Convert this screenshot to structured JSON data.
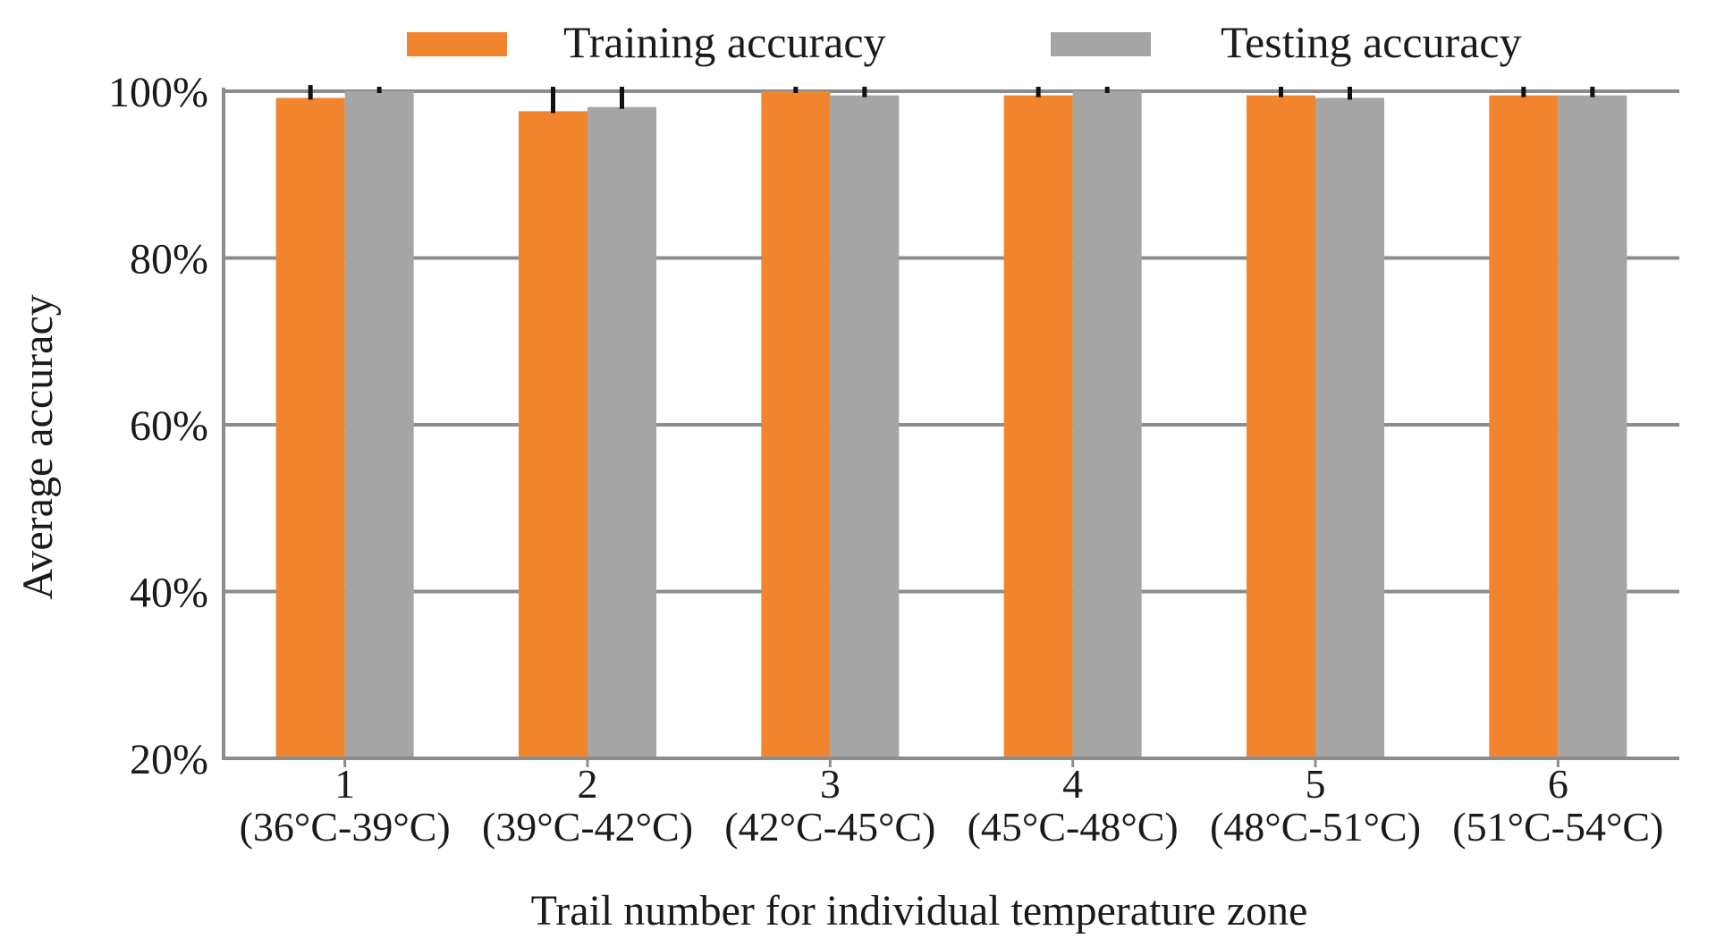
{
  "chart_data": {
    "type": "bar",
    "title": "",
    "xlabel": "Trail number for individual temperature zone",
    "ylabel": "Average accuracy",
    "ylim": [
      20,
      100
    ],
    "yticks": [
      20,
      40,
      60,
      80,
      100
    ],
    "ytick_labels": [
      "20%",
      "40%",
      "60%",
      "80%",
      "100%"
    ],
    "grid": true,
    "legend_position": "top",
    "categories": [
      "1",
      "2",
      "3",
      "4",
      "5",
      "6"
    ],
    "category_sublabels": [
      "(36°C-39°C)",
      "(39°C-42°C)",
      "(42°C-45°C)",
      "(45°C-48°C)",
      "(48°C-51°C)",
      "(51°C-54°C)"
    ],
    "series": [
      {
        "name": "Training accuracy",
        "color": "#f0852d",
        "values": [
          99.2,
          97.6,
          100.0,
          99.5,
          99.5,
          99.5
        ],
        "error_upper": [
          1.0,
          2.4,
          0.0,
          0.5,
          0.5,
          0.5
        ]
      },
      {
        "name": "Testing accuracy",
        "color": "#a5a5a5",
        "values": [
          100.0,
          98.1,
          99.5,
          100.0,
          99.2,
          99.5
        ],
        "error_upper": [
          0.0,
          1.9,
          0.5,
          0.0,
          0.8,
          0.5
        ]
      }
    ],
    "gridline_color": "#8c8c8c",
    "error_bar_color": "#111111"
  }
}
